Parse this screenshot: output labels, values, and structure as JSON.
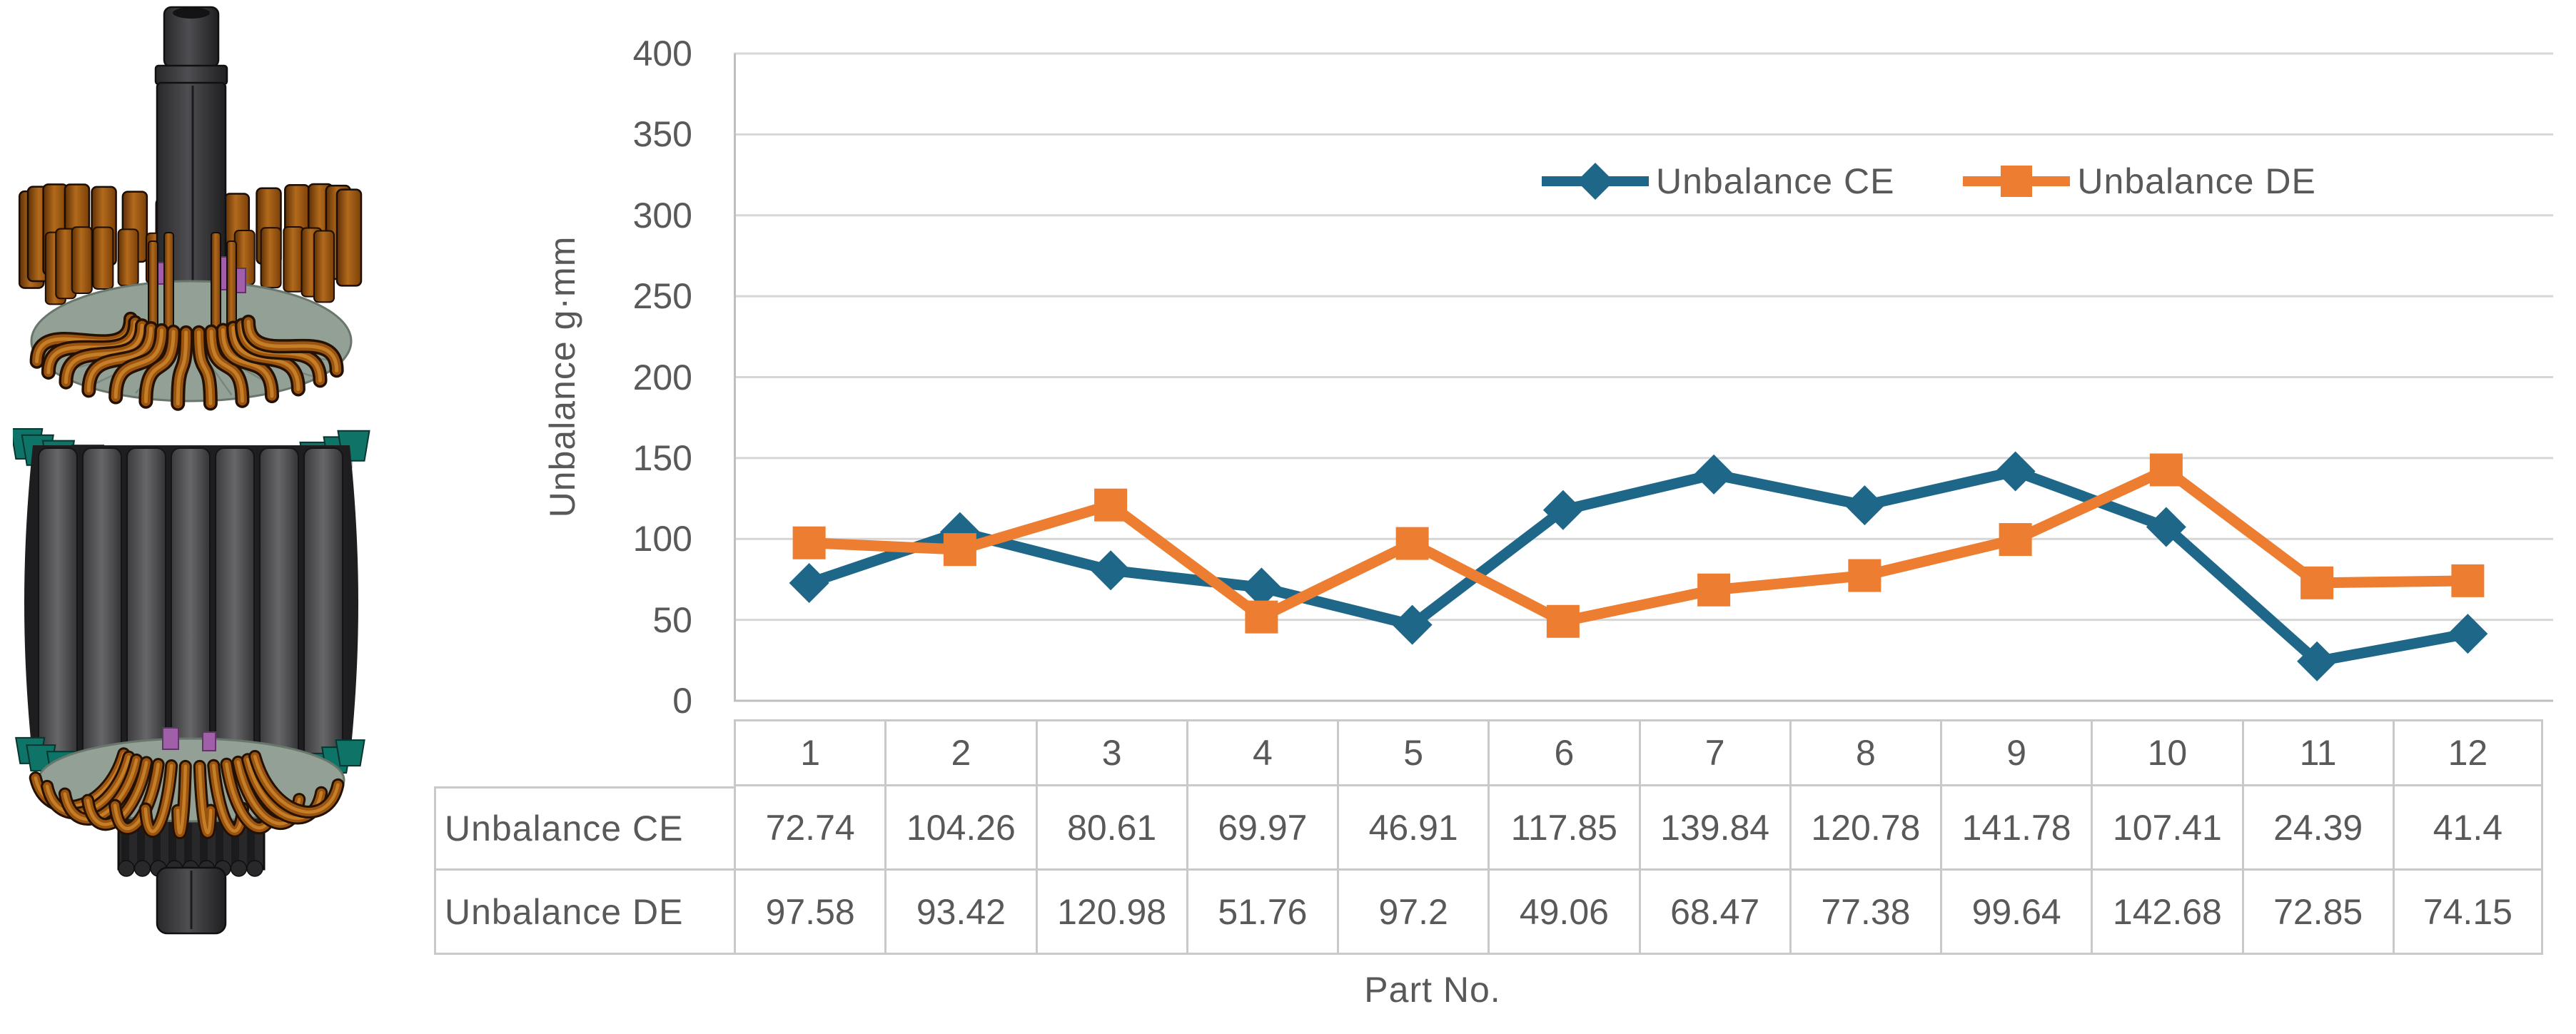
{
  "figure": {
    "left_image_description": "3D CAD render of an electric motor rotor with copper hairpin windings, laminated core and splined shaft"
  },
  "chart_data": {
    "type": "line",
    "title": "",
    "categories": [
      1,
      2,
      3,
      4,
      5,
      6,
      7,
      8,
      9,
      10,
      11,
      12
    ],
    "series": [
      {
        "name": "Unbalance CE",
        "marker": "diamond",
        "color": "#1F6789",
        "values": [
          72.74,
          104.26,
          80.61,
          69.97,
          46.91,
          117.85,
          139.84,
          120.78,
          141.78,
          107.41,
          24.39,
          41.4
        ]
      },
      {
        "name": "Unbalance DE",
        "marker": "square",
        "color": "#ED7D31",
        "values": [
          97.58,
          93.42,
          120.98,
          51.76,
          97.2,
          49.06,
          68.47,
          77.38,
          99.64,
          142.68,
          72.85,
          74.15
        ]
      }
    ],
    "xlabel": "Part No.",
    "ylabel": "Unbalance g·mm",
    "ylim": [
      0,
      400
    ],
    "ytick_step": 50,
    "grid": "horizontal",
    "legend_position": "top-inside",
    "data_table": true
  },
  "styles": {
    "text_color": "#595959",
    "gridline_color": "#D6D6D6",
    "axis_color": "#BFBFBF",
    "table_border_color": "#C9C9C9",
    "background": "#FFFFFF"
  }
}
